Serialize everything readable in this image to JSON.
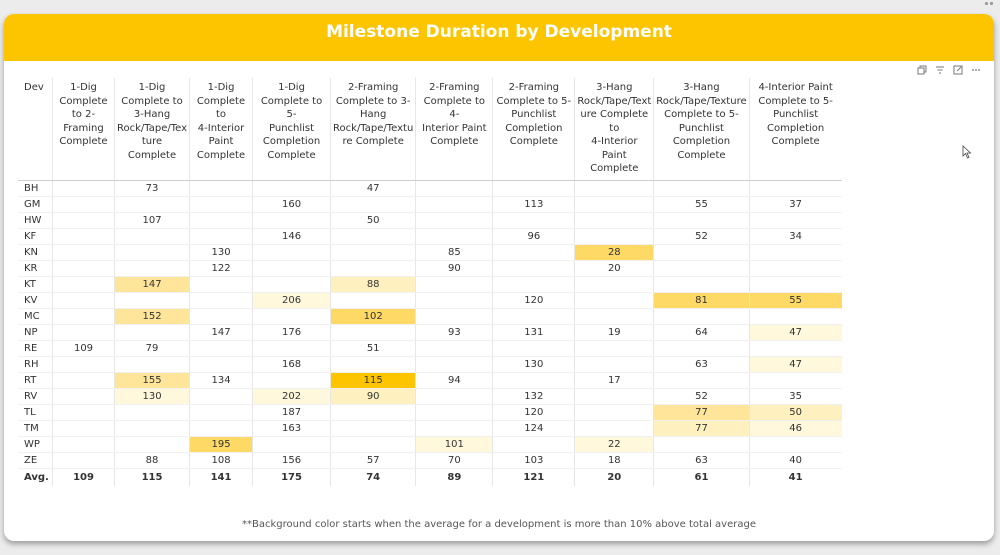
{
  "title": "Milestone Duration by Development",
  "footnote": "**Background color starts when the average for a development is more than 10% above total average",
  "colors": {
    "title_bar": "#fcc500",
    "highlight_levels": {
      "1": "#fff8dc",
      "2": "#fff1bf",
      "3": "#ffe59a",
      "4": "#ffd966",
      "5": "#fcc500"
    }
  },
  "icons": [
    "copy-icon",
    "filter-icon",
    "focus-mode-icon",
    "more-options-icon"
  ],
  "table": {
    "dev_header": "Dev",
    "columns": [
      [
        "1-Dig",
        "Complete",
        "to 2-",
        "Framing",
        "Complete"
      ],
      [
        "1-Dig",
        "Complete to",
        "3-Hang",
        "Rock/Tape/Tex",
        "ture Complete"
      ],
      [
        "1-Dig",
        "Complete to",
        "4-Interior",
        "Paint",
        "Complete"
      ],
      [
        "1-Dig",
        "Complete to 5-",
        "Punchlist",
        "Completion",
        "Complete"
      ],
      [
        "2-Framing",
        "Complete to 3-",
        "Hang",
        "Rock/Tape/Textu",
        "re Complete"
      ],
      [
        "2-Framing",
        "Complete to 4-",
        "Interior Paint",
        "Complete"
      ],
      [
        "2-Framing",
        "Complete to 5-",
        "Punchlist",
        "Completion",
        "Complete"
      ],
      [
        "3-Hang",
        "Rock/Tape/Text",
        "ure Complete to",
        "4-Interior Paint",
        "Complete"
      ],
      [
        "3-Hang",
        "Rock/Tape/Texture",
        "Complete to 5-",
        "Punchlist",
        "Completion",
        "Complete"
      ],
      [
        "4-Interior Paint",
        "Complete to 5-",
        "Punchlist",
        "Completion",
        "Complete"
      ]
    ],
    "rows": [
      {
        "dev": "BH",
        "values": [
          "",
          "73",
          "",
          "",
          "47",
          "",
          "",
          "",
          "",
          ""
        ],
        "levels": [
          0,
          0,
          0,
          0,
          0,
          0,
          0,
          0,
          0,
          0
        ]
      },
      {
        "dev": "GM",
        "values": [
          "",
          "",
          "",
          "160",
          "",
          "",
          "113",
          "",
          "55",
          "37"
        ],
        "levels": [
          0,
          0,
          0,
          0,
          0,
          0,
          0,
          0,
          0,
          0
        ]
      },
      {
        "dev": "HW",
        "values": [
          "",
          "107",
          "",
          "",
          "50",
          "",
          "",
          "",
          "",
          ""
        ],
        "levels": [
          0,
          0,
          0,
          0,
          0,
          0,
          0,
          0,
          0,
          0
        ]
      },
      {
        "dev": "KF",
        "values": [
          "",
          "",
          "",
          "146",
          "",
          "",
          "96",
          "",
          "52",
          "34"
        ],
        "levels": [
          0,
          0,
          0,
          0,
          0,
          0,
          0,
          0,
          0,
          0
        ]
      },
      {
        "dev": "KN",
        "values": [
          "",
          "",
          "130",
          "",
          "",
          "85",
          "",
          "28",
          "",
          ""
        ],
        "levels": [
          0,
          0,
          0,
          0,
          0,
          0,
          0,
          4,
          0,
          0
        ]
      },
      {
        "dev": "KR",
        "values": [
          "",
          "",
          "122",
          "",
          "",
          "90",
          "",
          "20",
          "",
          ""
        ],
        "levels": [
          0,
          0,
          0,
          0,
          0,
          0,
          0,
          0,
          0,
          0
        ]
      },
      {
        "dev": "KT",
        "values": [
          "",
          "147",
          "",
          "",
          "88",
          "",
          "",
          "",
          "",
          ""
        ],
        "levels": [
          0,
          3,
          0,
          0,
          2,
          0,
          0,
          0,
          0,
          0
        ]
      },
      {
        "dev": "KV",
        "values": [
          "",
          "",
          "",
          "206",
          "",
          "",
          "120",
          "",
          "81",
          "55"
        ],
        "levels": [
          0,
          0,
          0,
          1,
          0,
          0,
          0,
          0,
          4,
          4
        ]
      },
      {
        "dev": "MC",
        "values": [
          "",
          "152",
          "",
          "",
          "102",
          "",
          "",
          "",
          "",
          ""
        ],
        "levels": [
          0,
          3,
          0,
          0,
          4,
          0,
          0,
          0,
          0,
          0
        ]
      },
      {
        "dev": "NP",
        "values": [
          "",
          "",
          "147",
          "176",
          "",
          "93",
          "131",
          "19",
          "64",
          "47"
        ],
        "levels": [
          0,
          0,
          0,
          0,
          0,
          0,
          0,
          0,
          0,
          1
        ]
      },
      {
        "dev": "RE",
        "values": [
          "109",
          "79",
          "",
          "",
          "51",
          "",
          "",
          "",
          "",
          ""
        ],
        "levels": [
          0,
          0,
          0,
          0,
          0,
          0,
          0,
          0,
          0,
          0
        ]
      },
      {
        "dev": "RH",
        "values": [
          "",
          "",
          "",
          "168",
          "",
          "",
          "130",
          "",
          "63",
          "47"
        ],
        "levels": [
          0,
          0,
          0,
          0,
          0,
          0,
          0,
          0,
          0,
          1
        ]
      },
      {
        "dev": "RT",
        "values": [
          "",
          "155",
          "134",
          "",
          "115",
          "94",
          "",
          "17",
          "",
          ""
        ],
        "levels": [
          0,
          3,
          0,
          0,
          5,
          0,
          0,
          0,
          0,
          0
        ]
      },
      {
        "dev": "RV",
        "values": [
          "",
          "130",
          "",
          "202",
          "90",
          "",
          "132",
          "",
          "52",
          "35"
        ],
        "levels": [
          0,
          1,
          0,
          1,
          2,
          0,
          0,
          0,
          0,
          0
        ]
      },
      {
        "dev": "TL",
        "values": [
          "",
          "",
          "",
          "187",
          "",
          "",
          "120",
          "",
          "77",
          "50"
        ],
        "levels": [
          0,
          0,
          0,
          0,
          0,
          0,
          0,
          0,
          3,
          2
        ]
      },
      {
        "dev": "TM",
        "values": [
          "",
          "",
          "",
          "163",
          "",
          "",
          "124",
          "",
          "77",
          "46"
        ],
        "levels": [
          0,
          0,
          0,
          0,
          0,
          0,
          0,
          0,
          2,
          1
        ]
      },
      {
        "dev": "WP",
        "values": [
          "",
          "",
          "195",
          "",
          "",
          "101",
          "",
          "22",
          "",
          ""
        ],
        "levels": [
          0,
          0,
          4,
          0,
          0,
          1,
          0,
          1,
          0,
          0
        ]
      },
      {
        "dev": "ZE",
        "values": [
          "",
          "88",
          "108",
          "156",
          "57",
          "70",
          "103",
          "18",
          "63",
          "40"
        ],
        "levels": [
          0,
          0,
          0,
          0,
          0,
          0,
          0,
          0,
          0,
          0
        ]
      }
    ],
    "avg": {
      "label": "Avg.",
      "values": [
        "109",
        "115",
        "141",
        "175",
        "74",
        "89",
        "121",
        "20",
        "61",
        "41"
      ]
    }
  }
}
